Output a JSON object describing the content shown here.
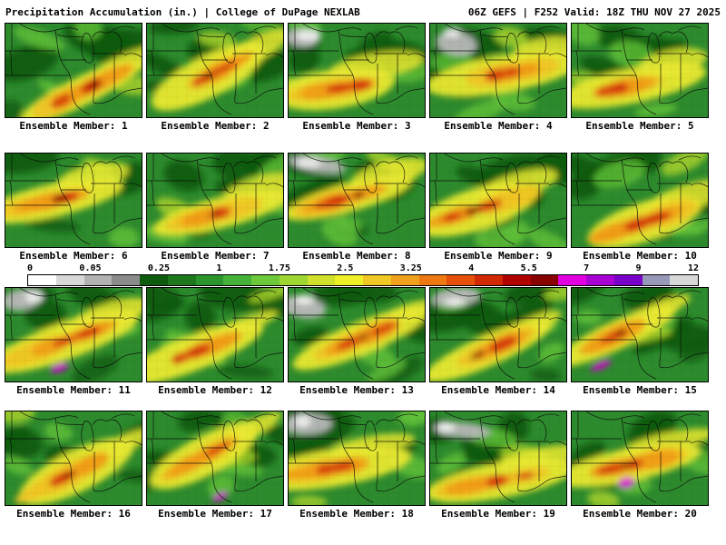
{
  "header": {
    "title": "Precipitation Accumulation (in.) | College of DuPage NEXLAB",
    "forecast_info": "06Z GEFS | F252 Valid: 18Z THU NOV 27 2025"
  },
  "panels": {
    "labels": [
      "Ensemble Member: 1",
      "Ensemble Member: 2",
      "Ensemble Member: 3",
      "Ensemble Member: 4",
      "Ensemble Member: 5",
      "Ensemble Member: 6",
      "Ensemble Member: 7",
      "Ensemble Member: 8",
      "Ensemble Member: 9",
      "Ensemble Member: 10",
      "Ensemble Member: 11",
      "Ensemble Member: 12",
      "Ensemble Member: 13",
      "Ensemble Member: 14",
      "Ensemble Member: 15",
      "Ensemble Member: 16",
      "Ensemble Member: 17",
      "Ensemble Member: 18",
      "Ensemble Member: 19",
      "Ensemble Member: 20"
    ]
  },
  "colorbar": {
    "units": "in.",
    "ticks": [
      "0",
      "0.05",
      "0.25",
      "1",
      "1.75",
      "2.5",
      "3.25",
      "4",
      "5.5",
      "7",
      "9",
      "12"
    ],
    "colors": [
      "#ffffff",
      "#d8d8d8",
      "#b2b2b2",
      "#8c8c8c",
      "#0e5a0e",
      "#1d771d",
      "#2c942c",
      "#45b23a",
      "#6dc83a",
      "#9fd632",
      "#d0e02c",
      "#efef28",
      "#f0c826",
      "#f0a01c",
      "#f07812",
      "#e65008",
      "#d22800",
      "#b00000",
      "#880000",
      "#e000e0",
      "#a800d2",
      "#7800c8",
      "#9898b8",
      "#d8d8d8"
    ]
  },
  "map_palette": {
    "base": "#2d8a2d",
    "dark_green": "#0a5a0a",
    "light_green": "#63c23a",
    "yellow_green": "#aed42a",
    "yellow": "#e9e930",
    "gold": "#f0c424",
    "orange": "#f09c18",
    "red": "#d4300a",
    "dark_red": "#8c0a00",
    "magenta": "#d800d8",
    "gray": "#b8b8b8",
    "white": "#f2f2f2"
  }
}
